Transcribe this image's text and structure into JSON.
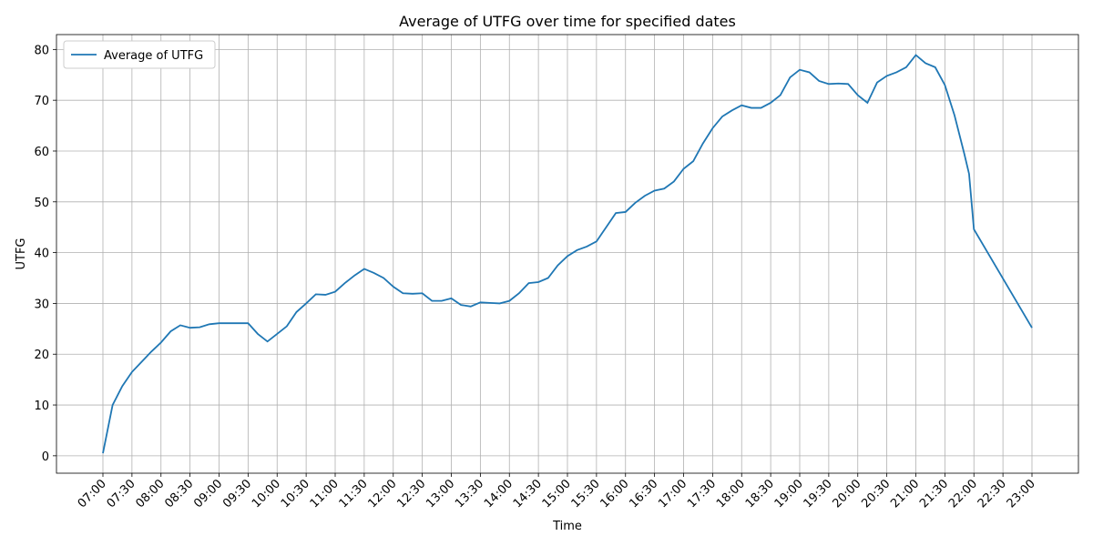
{
  "chart_data": {
    "type": "line",
    "title": "Average of UTFG over time for specified dates",
    "x_label": "Time",
    "y_label": "UTFG",
    "x": [
      "07:00",
      "07:10",
      "07:20",
      "07:30",
      "07:40",
      "07:50",
      "08:00",
      "08:10",
      "08:20",
      "08:30",
      "08:40",
      "08:50",
      "09:00",
      "09:10",
      "09:20",
      "09:30",
      "09:40",
      "09:50",
      "10:00",
      "10:10",
      "10:20",
      "10:30",
      "10:40",
      "10:50",
      "11:00",
      "11:10",
      "11:20",
      "11:30",
      "11:40",
      "11:50",
      "12:00",
      "12:10",
      "12:20",
      "12:30",
      "12:40",
      "12:50",
      "13:00",
      "13:10",
      "13:20",
      "13:30",
      "13:40",
      "13:50",
      "14:00",
      "14:10",
      "14:20",
      "14:30",
      "14:40",
      "14:50",
      "15:00",
      "15:10",
      "15:20",
      "15:30",
      "15:40",
      "15:50",
      "16:00",
      "16:10",
      "16:20",
      "16:30",
      "16:40",
      "16:50",
      "17:00",
      "17:10",
      "17:20",
      "17:30",
      "17:40",
      "17:50",
      "18:00",
      "18:10",
      "18:20",
      "18:30",
      "18:40",
      "18:50",
      "19:00",
      "19:10",
      "19:20",
      "19:30",
      "19:40",
      "19:50",
      "20:00",
      "20:10",
      "20:20",
      "20:30",
      "20:40",
      "20:50",
      "21:00",
      "21:10",
      "21:20",
      "21:30",
      "21:40",
      "21:50",
      "21:55",
      "22:00",
      "23:00"
    ],
    "series": [
      {
        "name": "Average of UTFG",
        "color": "#1f77b4",
        "values": [
          0.5,
          10,
          13.7,
          16.5,
          18.5,
          20.5,
          22.3,
          24.5,
          25.7,
          25.2,
          25.3,
          25.9,
          26.1,
          26.1,
          26.1,
          26.1,
          24.0,
          22.5,
          24.0,
          25.5,
          28.3,
          30.0,
          31.8,
          31.7,
          32.3,
          34.0,
          35.5,
          36.8,
          36.0,
          35.0,
          33.3,
          32.0,
          31.9,
          32.0,
          30.5,
          30.5,
          31.0,
          29.7,
          29.4,
          30.2,
          30.1,
          30.0,
          30.5,
          32.0,
          34.0,
          34.2,
          35.0,
          37.5,
          39.3,
          40.5,
          41.2,
          42.2,
          45.0,
          47.8,
          48.0,
          49.8,
          51.2,
          52.2,
          52.6,
          54.0,
          56.5,
          58.0,
          61.5,
          64.5,
          66.8,
          68.0,
          69.0,
          68.5,
          68.5,
          69.5,
          71.0,
          74.5,
          76.0,
          75.5,
          73.8,
          73.2,
          73.3,
          73.2,
          71.0,
          69.5,
          73.5,
          74.8,
          75.5,
          76.5,
          78.9,
          77.3,
          76.5,
          73.0,
          67.0,
          59.5,
          55.5,
          44.6,
          25.2
        ]
      }
    ],
    "xlim": [
      "06:12",
      "23:48"
    ],
    "xticks": [
      "07:00",
      "07:30",
      "08:00",
      "08:30",
      "09:00",
      "09:30",
      "10:00",
      "10:30",
      "11:00",
      "11:30",
      "12:00",
      "12:30",
      "13:00",
      "13:30",
      "14:00",
      "14:30",
      "15:00",
      "15:30",
      "16:00",
      "16:30",
      "17:00",
      "17:30",
      "18:00",
      "18:30",
      "19:00",
      "19:30",
      "20:00",
      "20:30",
      "21:00",
      "21:30",
      "22:00",
      "22:30",
      "23:00"
    ],
    "ylim": [
      -3.43,
      82.93
    ],
    "yticks": [
      0,
      10,
      20,
      30,
      40,
      50,
      60,
      70,
      80
    ],
    "grid": true,
    "legend": "upper left"
  }
}
